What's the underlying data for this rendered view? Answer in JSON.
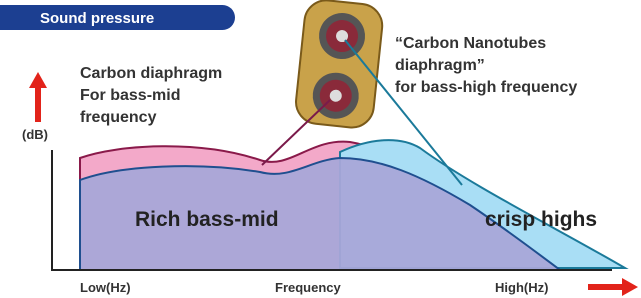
{
  "badge": "Sound pressure",
  "y_axis_label": "(dB)",
  "left_caption": [
    "Carbon diaphragm",
    "For bass-mid",
    "frequency"
  ],
  "right_caption": [
    "“Carbon Nanotubes",
    "diaphragm”",
    "for bass-high frequency"
  ],
  "region_labels": [
    "Rich bass-mid",
    "crisp highs"
  ],
  "x_axis_labels": [
    "Low(Hz)",
    "Frequency",
    "High(Hz)"
  ]
}
